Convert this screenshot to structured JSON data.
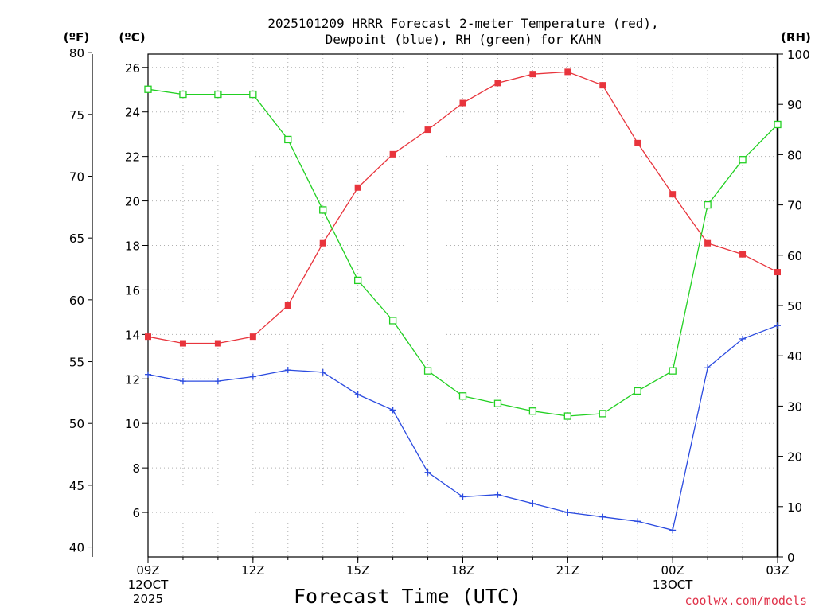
{
  "chart_data": {
    "type": "line",
    "title_line1": "2025101209 HRRR Forecast 2-meter Temperature (red),",
    "title_line2": "Dewpoint (blue), RH (green) for KAHN",
    "xlabel": "Forecast Time (UTC)",
    "credit": "coolwx.com/models",
    "units": {
      "fahrenheit": "(ºF)",
      "celsius": "(ºC)",
      "rh": "(RH)"
    },
    "x_hours": [
      0,
      1,
      2,
      3,
      4,
      5,
      6,
      7,
      8,
      9,
      10,
      11,
      12,
      13,
      14,
      15,
      16,
      17,
      18
    ],
    "x_ticks": [
      {
        "hour": 0,
        "label": "09Z",
        "sub1": "12OCT",
        "sub2": "2025"
      },
      {
        "hour": 3,
        "label": "12Z",
        "sub1": "",
        "sub2": ""
      },
      {
        "hour": 6,
        "label": "15Z",
        "sub1": "",
        "sub2": ""
      },
      {
        "hour": 9,
        "label": "18Z",
        "sub1": "",
        "sub2": ""
      },
      {
        "hour": 12,
        "label": "21Z",
        "sub1": "",
        "sub2": ""
      },
      {
        "hour": 15,
        "label": "00Z",
        "sub1": "13OCT",
        "sub2": ""
      },
      {
        "hour": 18,
        "label": "03Z",
        "sub1": "",
        "sub2": ""
      }
    ],
    "celsius_axis": {
      "range": [
        4.0,
        26.6
      ],
      "ticks": [
        "6",
        "8",
        "10",
        "12",
        "14",
        "16",
        "18",
        "20",
        "22",
        "24",
        "26"
      ]
    },
    "fahrenheit_axis": {
      "ticks": [
        "40",
        "45",
        "50",
        "55",
        "60",
        "65",
        "70",
        "75",
        "80"
      ]
    },
    "rh_axis": {
      "range": [
        0,
        100
      ],
      "ticks": [
        "0",
        "10",
        "20",
        "30",
        "40",
        "50",
        "60",
        "70",
        "80",
        "90",
        "100"
      ]
    },
    "series": [
      {
        "name": "Temperature",
        "unit": "C",
        "color": "#e8343c",
        "values": [
          13.9,
          13.6,
          13.6,
          13.9,
          15.3,
          18.1,
          20.6,
          22.1,
          23.2,
          24.4,
          25.3,
          25.7,
          25.8,
          25.2,
          22.6,
          20.3,
          18.1,
          17.6,
          16.8
        ]
      },
      {
        "name": "Dewpoint",
        "unit": "C",
        "color": "#2b4be0",
        "values": [
          12.2,
          11.9,
          11.9,
          12.1,
          12.4,
          12.3,
          11.3,
          10.6,
          7.8,
          6.7,
          6.8,
          6.4,
          6.0,
          5.8,
          5.6,
          5.2,
          12.5,
          13.8,
          14.4
        ]
      },
      {
        "name": "RH",
        "unit": "%",
        "color": "#22d022",
        "values": [
          93,
          92,
          92,
          92,
          83,
          69,
          55,
          47,
          37,
          32,
          30.5,
          29,
          28,
          28.5,
          33,
          37,
          70,
          79,
          86
        ]
      }
    ]
  }
}
